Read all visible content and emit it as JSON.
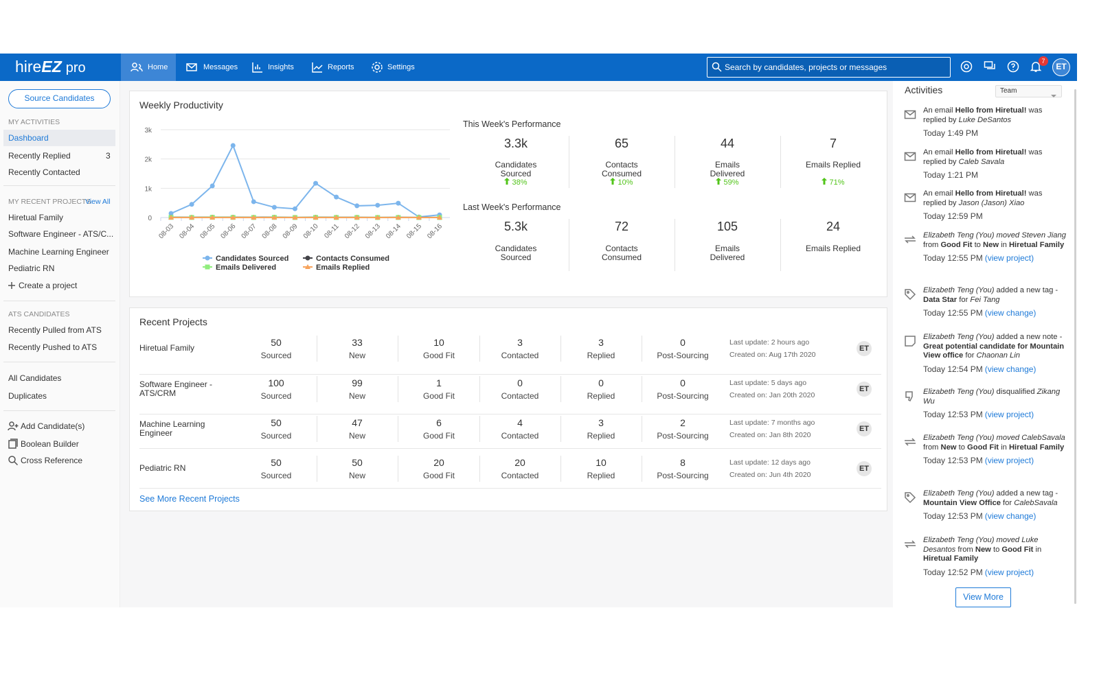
{
  "nav": {
    "logo": [
      "hire",
      "EZ",
      "pro"
    ],
    "items": [
      "Home",
      "Messages",
      "Insights",
      "Reports",
      "Settings"
    ],
    "search_placeholder": "Search by candidates, projects or messages",
    "notifications": "7",
    "avatar": "ET"
  },
  "sidebar": {
    "source_button": "Source Candidates",
    "my_activities": {
      "heading": "MY ACTIVITIES",
      "items": [
        {
          "label": "Dashboard"
        },
        {
          "label": "Recently Replied",
          "count": 3
        },
        {
          "label": "Recently Contacted"
        }
      ]
    },
    "recent_projects": {
      "heading": "MY RECENT PROJECTS",
      "view_all": "View All",
      "items": [
        "Hiretual Family",
        "Software Engineer - ATS/C...",
        "Machine Learning Engineer",
        "Pediatric RN"
      ],
      "create": "Create a project"
    },
    "ats": {
      "heading": "ATS CANDIDATES",
      "items": [
        "Recently Pulled from ATS",
        "Recently Pushed to ATS"
      ]
    },
    "candidates": [
      "All Candidates",
      "Duplicates"
    ],
    "tools": [
      "Add Candidate(s)",
      "Boolean Builder",
      "Cross Reference"
    ]
  },
  "weekly": {
    "title": "Weekly Productivity",
    "this_week": {
      "heading": "This Week's Performance",
      "stats": [
        {
          "value": "3.3k",
          "label": "Candidates Sourced",
          "change": "38%"
        },
        {
          "value": "65",
          "label": "Contacts Consumed",
          "change": "10%"
        },
        {
          "value": "44",
          "label": "Emails Delivered",
          "change": "59%"
        },
        {
          "value": "7",
          "label": "Emails Replied",
          "change": "71%"
        }
      ]
    },
    "last_week": {
      "heading": "Last Week's Performance",
      "stats": [
        {
          "value": "5.3k",
          "label": "Candidates Sourced"
        },
        {
          "value": "72",
          "label": "Contacts Consumed"
        },
        {
          "value": "105",
          "label": "Emails Delivered"
        },
        {
          "value": "24",
          "label": "Emails Replied"
        }
      ]
    }
  },
  "chart_data": {
    "type": "line",
    "categories": [
      "08-03",
      "08-04",
      "08-05",
      "08-06",
      "08-07",
      "08-08",
      "08-09",
      "08-10",
      "08-11",
      "08-12",
      "08-13",
      "08-14",
      "08-15",
      "08-16"
    ],
    "series": [
      {
        "name": "Candidates Sourced",
        "color": "#7cb5ec",
        "values": [
          140,
          450,
          1080,
          2460,
          540,
          350,
          300,
          1170,
          700,
          400,
          420,
          490,
          20,
          90
        ]
      },
      {
        "name": "Contacts Consumed",
        "color": "#434348",
        "values": [
          10,
          5,
          12,
          8,
          6,
          10,
          4,
          9,
          5,
          7,
          4,
          6,
          2,
          3
        ]
      },
      {
        "name": "Emails Delivered",
        "color": "#90ed7d",
        "values": [
          6,
          4,
          8,
          5,
          3,
          6,
          2,
          5,
          3,
          4,
          2,
          3,
          1,
          2
        ]
      },
      {
        "name": "Emails Replied",
        "color": "#f7a35c",
        "values": [
          1,
          0,
          1,
          1,
          0,
          1,
          0,
          1,
          0,
          1,
          0,
          1,
          0,
          0
        ]
      }
    ],
    "ylim": [
      0,
      3000
    ],
    "yticks": [
      0,
      {
        "value": 1000,
        "label": "1k"
      },
      {
        "value": 2000,
        "label": "2k"
      },
      {
        "value": 3000,
        "label": "3k"
      }
    ],
    "grid": true,
    "legend": "bottom"
  },
  "projects": {
    "title": "Recent Projects",
    "columns": [
      "Sourced",
      "New",
      "Good Fit",
      "Contacted",
      "Replied",
      "Post-Sourcing"
    ],
    "rows": [
      {
        "name": "Hiretual Family",
        "values": [
          50,
          33,
          10,
          3,
          3,
          0
        ],
        "updated": "Last update: 2 hours ago",
        "created": "Created on: Aug 17th 2020",
        "owner": "ET"
      },
      {
        "name": "Software Engineer - ATS/CRM",
        "values": [
          100,
          99,
          1,
          0,
          0,
          0
        ],
        "updated": "Last update: 5 days ago",
        "created": "Created on: Jan 20th 2020",
        "owner": "ET"
      },
      {
        "name": "Machine Learning Engineer",
        "values": [
          50,
          47,
          6,
          4,
          3,
          2
        ],
        "updated": "Last update: 7 months ago",
        "created": "Created on: Jan 8th 2020",
        "owner": "ET"
      },
      {
        "name": "Pediatric RN",
        "values": [
          50,
          50,
          20,
          20,
          10,
          8
        ],
        "updated": "Last update: 12 days ago",
        "created": "Created on: Jun 4th 2020",
        "owner": "ET"
      }
    ],
    "see_more": "See More Recent Projects"
  },
  "activities": {
    "title": "Activities",
    "filter": "Team",
    "items": [
      {
        "parts": [
          [
            "An email "
          ],
          [
            "Hello from Hiretual!",
            "b"
          ],
          [
            " was replied by "
          ],
          [
            "Luke DeSantos",
            "i"
          ]
        ],
        "time": "Today 1:49 PM"
      },
      {
        "parts": [
          [
            "An email "
          ],
          [
            "Hello from Hiretual!",
            "b"
          ],
          [
            " was replied by "
          ],
          [
            "Caleb Savala",
            "i"
          ]
        ],
        "time": "Today 1:21 PM"
      },
      {
        "parts": [
          [
            "An email "
          ],
          [
            "Hello from Hiretual!",
            "b"
          ],
          [
            " was replied by "
          ],
          [
            "Jason (Jason) Xiao",
            "i"
          ]
        ],
        "time": "Today 12:59 PM"
      },
      {
        "parts": [
          [
            "Elizabeth Teng (You) moved Steven Jiang",
            "i"
          ],
          [
            " from "
          ],
          [
            "Good Fit",
            "b"
          ],
          [
            " to "
          ],
          [
            "New",
            "b"
          ],
          [
            " in "
          ],
          [
            "Hiretual Family",
            "b"
          ]
        ],
        "time": "Today 12:55 PM",
        "link": "(view project)"
      },
      {
        "parts": [
          [
            "Elizabeth Teng (You)",
            "i"
          ],
          [
            " added a new tag - "
          ],
          [
            "Data Star",
            "b"
          ],
          [
            " for "
          ],
          [
            "Fei Tang",
            "i"
          ]
        ],
        "time": "Today 12:55 PM",
        "link": "(view change)"
      },
      {
        "parts": [
          [
            "Elizabeth Teng (You)",
            "i"
          ],
          [
            " added a new note - "
          ],
          [
            "Great potential candidate for Mountain View office",
            "b"
          ],
          [
            " for "
          ],
          [
            "Chaonan Lin",
            "i"
          ]
        ],
        "time": "Today 12:54 PM",
        "link": "(view change)"
      },
      {
        "parts": [
          [
            "Elizabeth Teng (You)",
            "i"
          ],
          [
            " disqualified "
          ],
          [
            "Zikang Wu",
            "i"
          ]
        ],
        "time": "Today 12:53 PM",
        "link": "(view project)"
      },
      {
        "parts": [
          [
            "Elizabeth Teng (You) moved CalebSavala",
            "i"
          ],
          [
            " from "
          ],
          [
            "New",
            "b"
          ],
          [
            " to "
          ],
          [
            "Good Fit",
            "b"
          ],
          [
            " in "
          ],
          [
            "Hiretual Family",
            "b"
          ]
        ],
        "time": "Today 12:53 PM",
        "link": "(view project)"
      },
      {
        "parts": [
          [
            "Elizabeth Teng (You)",
            "i"
          ],
          [
            " added a new tag - "
          ],
          [
            "Mountain View Office",
            "b"
          ],
          [
            " for "
          ],
          [
            "CalebSavala",
            "i"
          ]
        ],
        "time": "Today 12:53 PM",
        "link": "(view change)"
      },
      {
        "parts": [
          [
            "Elizabeth Teng (You) moved Luke Desantos",
            "i"
          ],
          [
            " from "
          ],
          [
            "New",
            "b"
          ],
          [
            " to "
          ],
          [
            "Good Fit",
            "b"
          ],
          [
            " in "
          ],
          [
            "Hiretual Family",
            "b"
          ]
        ],
        "time": "Today 12:52 PM",
        "link": "(view project)"
      }
    ],
    "view_more": "View More"
  }
}
